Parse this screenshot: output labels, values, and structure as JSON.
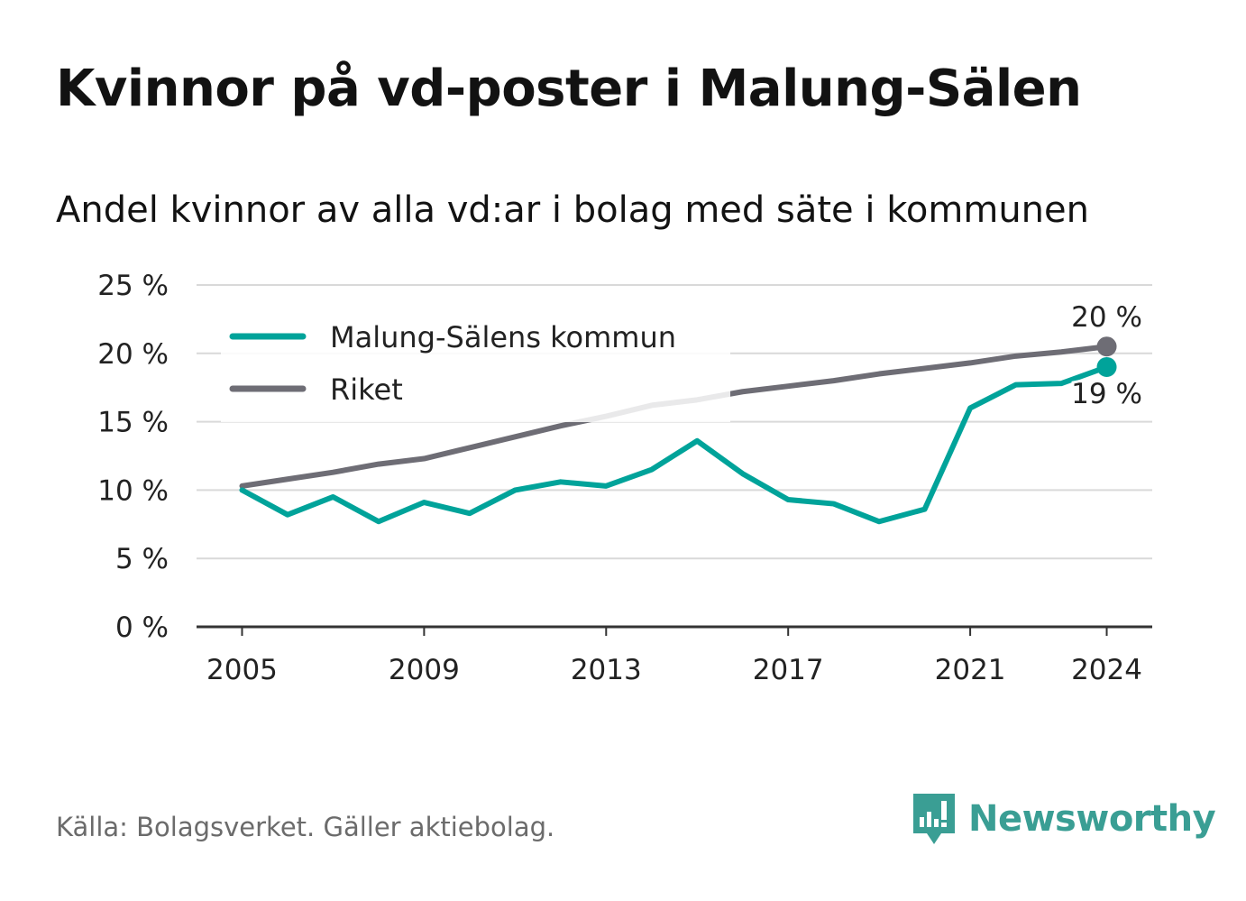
{
  "title": "Kvinnor på vd-poster i Malung-Sälen",
  "subtitle": "Andel kvinnor av alla vd:ar i bolag med säte i kommunen",
  "source": "Källa: Bolagsverket. Gäller aktiebolag.",
  "brand": "Newsworthy",
  "colors": {
    "local": "#00a39a",
    "national": "#6e6d75",
    "grid": "#d9d9d9",
    "axis": "#333333"
  },
  "chart_data": {
    "type": "line",
    "ylim": [
      0,
      25
    ],
    "yticks": [
      {
        "value": 0,
        "label": "0 %"
      },
      {
        "value": 5,
        "label": "5 %"
      },
      {
        "value": 10,
        "label": "10 %"
      },
      {
        "value": 15,
        "label": "15 %"
      },
      {
        "value": 20,
        "label": "20 %"
      },
      {
        "value": 25,
        "label": "25 %"
      }
    ],
    "xlim": [
      2004,
      2025
    ],
    "xticks": [
      {
        "value": 2005,
        "label": "2005"
      },
      {
        "value": 2009,
        "label": "2009"
      },
      {
        "value": 2013,
        "label": "2013"
      },
      {
        "value": 2017,
        "label": "2017"
      },
      {
        "value": 2021,
        "label": "2021"
      },
      {
        "value": 2024,
        "label": "2024"
      }
    ],
    "grid": true,
    "legend_position": "top-left",
    "x": [
      2005,
      2006,
      2007,
      2008,
      2009,
      2010,
      2011,
      2012,
      2013,
      2014,
      2015,
      2016,
      2017,
      2018,
      2019,
      2020,
      2021,
      2022,
      2023,
      2024
    ],
    "series": [
      {
        "name": "Malung-Sälens kommun",
        "color": "#00a39a",
        "values": [
          10.0,
          8.2,
          9.5,
          7.7,
          9.1,
          8.3,
          10.0,
          10.6,
          10.3,
          11.5,
          13.6,
          11.2,
          9.3,
          9.0,
          7.7,
          8.6,
          16.0,
          17.7,
          17.8,
          19.0
        ],
        "end_label": "19 %"
      },
      {
        "name": "Riket",
        "color": "#6e6d75",
        "values": [
          10.3,
          10.8,
          11.3,
          11.9,
          12.3,
          13.1,
          13.9,
          14.7,
          15.4,
          16.2,
          16.6,
          17.2,
          17.6,
          18.0,
          18.5,
          18.9,
          19.3,
          19.8,
          20.1,
          20.5
        ],
        "end_label": "20 %"
      }
    ]
  }
}
